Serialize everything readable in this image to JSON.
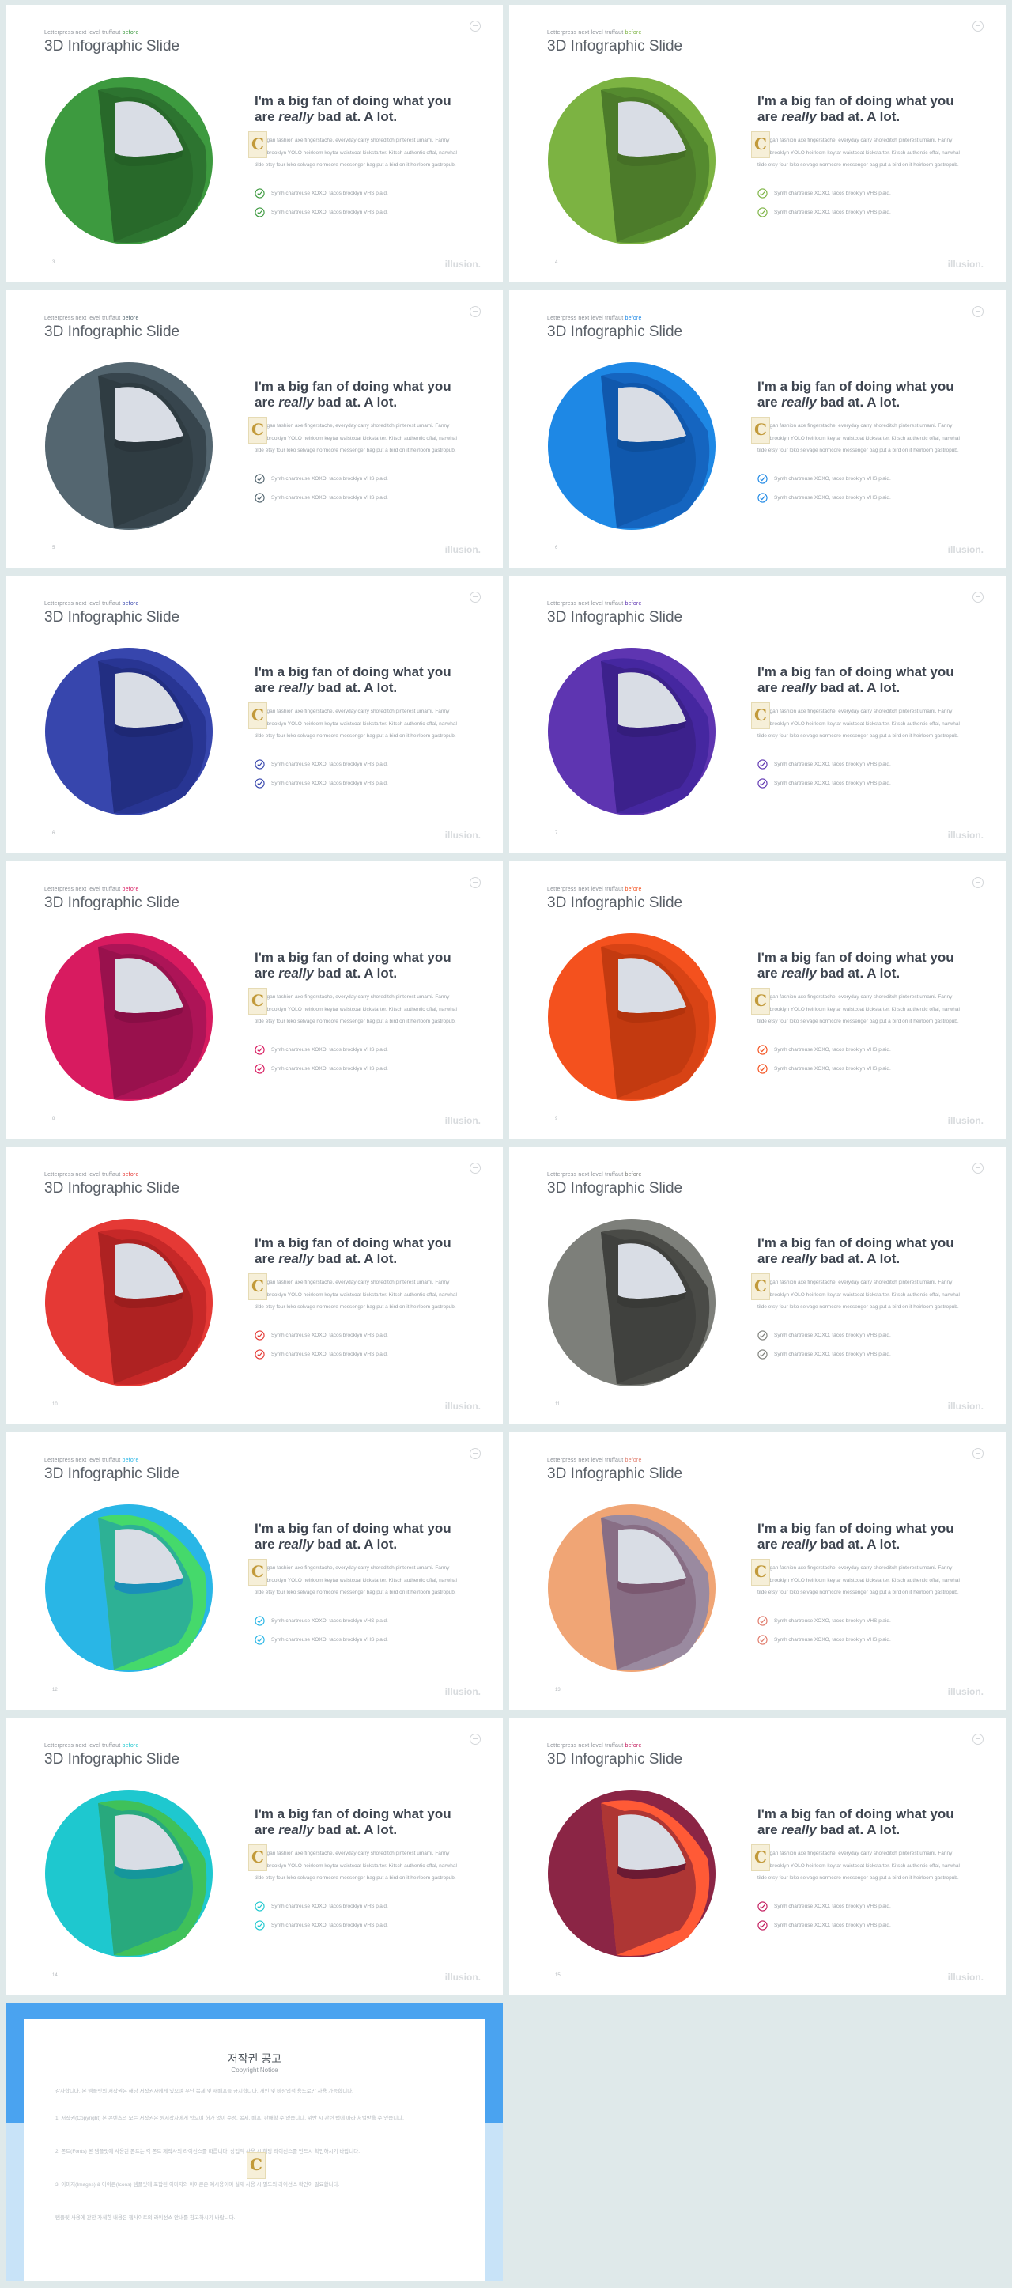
{
  "slide_template": {
    "kicker": "Letterpress next level truffaut",
    "kicker_highlight": "before",
    "title": "3D Infographic Slide",
    "headline_line1": "I'm a big fan of doing what you",
    "headline_are": "are ",
    "headline_em": "really",
    "headline_rest": " bad at. A lot.",
    "body": "Cardigan fashion axe fingerstache, everyday carry shoreditch pinterest umami. Fanny pack brooklyn YOLO heirloom keytar waistcoat kickstarter. Kitsch authentic offal, narwhal tilde etsy four loko selvage normcore messenger bag put a bird on it heirloom gastropub.",
    "check1": "Synth chartreuse XOXO, tacos brooklyn VHS plaid.",
    "check2": "Synth chartreuse XOXO, tacos brooklyn VHS plaid.",
    "brand": "illusion.",
    "badge_letter": "C"
  },
  "slides": [
    {
      "page": "3",
      "theme": {
        "outer": "#3d9a3f",
        "dark": "#2d7430",
        "rim": "#246026",
        "accent": "#3d9a3f",
        "kicker_hl": "#3d9a3f"
      }
    },
    {
      "page": "4",
      "theme": {
        "outer": "#7cb342",
        "dark": "#558b2f",
        "rim": "#456f26",
        "accent": "#7cb342",
        "kicker_hl": "#7cb342"
      }
    },
    {
      "page": "5",
      "theme": {
        "outer": "#546670",
        "dark": "#37454d",
        "rim": "#2a353b",
        "accent": "#546670",
        "kicker_hl": "#546670"
      }
    },
    {
      "page": "6",
      "theme": {
        "outer": "#1e88e5",
        "dark": "#1565c0",
        "rim": "#0d4f9c",
        "accent": "#1e88e5",
        "kicker_hl": "#1e88e5"
      }
    },
    {
      "page": "6",
      "theme": {
        "outer": "#3746ad",
        "dark": "#283593",
        "rim": "#1e2874",
        "accent": "#3746ad",
        "kicker_hl": "#3746ad"
      }
    },
    {
      "page": "7",
      "theme": {
        "outer": "#5e35b1",
        "dark": "#4527a0",
        "rim": "#341d7c",
        "accent": "#5e35b1",
        "kicker_hl": "#5e35b1"
      }
    },
    {
      "page": "8",
      "theme": {
        "outer": "#d81b60",
        "dark": "#ad1457",
        "rim": "#880e45",
        "accent": "#d81b60",
        "kicker_hl": "#d81b60"
      }
    },
    {
      "page": "9",
      "theme": {
        "outer": "#f4511e",
        "dark": "#d84315",
        "rim": "#b3330c",
        "accent": "#f4511e",
        "kicker_hl": "#f4511e"
      }
    },
    {
      "page": "10",
      "theme": {
        "outer": "#e53935",
        "dark": "#c62828",
        "rim": "#9b1d1d",
        "accent": "#e53935",
        "kicker_hl": "#e53935"
      }
    },
    {
      "page": "11",
      "theme": {
        "outer": "#7d7f7a",
        "dark": "#4a4b47",
        "rim": "#393a37",
        "accent": "#7d7f7a",
        "kicker_hl": "#7d7f7a"
      }
    },
    {
      "page": "12",
      "theme": {
        "outer": "#29b6e6",
        "dark": "#45d96b",
        "rim": "#1a8fb8",
        "accent": "#29b6e6",
        "kicker_hl": "#29b6e6"
      }
    },
    {
      "page": "13",
      "theme": {
        "outer": "#f0a575",
        "dark": "#9a8aa0",
        "rim": "#7a5870",
        "accent": "#e07a6a",
        "kicker_hl": "#e07a6a"
      }
    },
    {
      "page": "14",
      "theme": {
        "outer": "#1ec8cf",
        "dark": "#3fc15a",
        "rim": "#15969b",
        "accent": "#1ec8cf",
        "kicker_hl": "#1ec8cf"
      }
    },
    {
      "page": "15",
      "theme": {
        "outer": "#8b2545",
        "dark": "#ff5a36",
        "rim": "#6b1a33",
        "accent": "#c2185b",
        "kicker_hl": "#c2185b"
      }
    }
  ],
  "copyright": {
    "title": "저작권 공고",
    "subtitle": "Copyright Notice",
    "p1": "감사합니다. 본 템플릿의 저작권은 해당 저작권자에게 있으며 무단 복제 및 재배포를 금지합니다. 개인 및 비상업적 용도로만 사용 가능합니다.",
    "p2": "1. 저작권(Copyright) 본 콘텐츠의 모든 저작권은 원저작자에게 있으며 허가 없이 수정, 복제, 배포, 판매할 수 없습니다. 위반 시 관련 법에 따라 처벌받을 수 있습니다.",
    "p3": "2. 폰트(Fonts) 본 템플릿에 사용된 폰트는 각 폰트 제작사의 라이선스를 따릅니다. 상업적 사용 시 해당 라이선스를 반드시 확인하시기 바랍니다.",
    "p4": "3. 이미지(Images) & 아이콘(Icons) 템플릿에 포함된 이미지와 아이콘은 예시용이며 실제 사용 시 별도의 라이선스 확인이 필요합니다.",
    "p5": "템플릿 사용에 관한 자세한 내용은 웹사이트의 라이선스 안내를 참고하시기 바랍니다."
  }
}
